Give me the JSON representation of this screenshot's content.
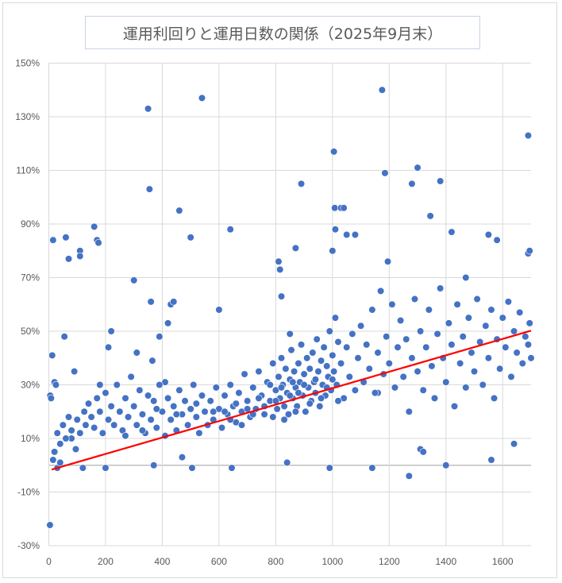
{
  "chart_data": {
    "type": "scatter",
    "title": "運用利回りと運用日数の関係（2025年9月末）",
    "xlabel": "",
    "ylabel": "",
    "xlim": [
      0,
      1700
    ],
    "ylim": [
      -30,
      150
    ],
    "x_ticks": [
      0,
      200,
      400,
      600,
      800,
      1000,
      1200,
      1400,
      1600
    ],
    "x_tick_labels": [
      "0",
      "200",
      "400",
      "600",
      "800",
      "1000",
      "1200",
      "1400",
      "1600"
    ],
    "y_ticks": [
      150,
      130,
      110,
      90,
      70,
      50,
      30,
      10,
      -10,
      -30
    ],
    "y_tick_labels": [
      "150%",
      "130%",
      "110%",
      "90%",
      "70%",
      "50%",
      "30%",
      "10%",
      "-10%",
      "-30%"
    ],
    "grid": true,
    "legend": "none",
    "colors": {
      "points": "#4472c4",
      "trendline": "#ff0000",
      "grid": "#d9d9d9",
      "zero_line": "#bfbfbf"
    },
    "trendline": {
      "type": "linear",
      "x": [
        10,
        1700
      ],
      "y": [
        -1.6,
        50.2
      ]
    },
    "points": [
      [
        4,
        -22.3
      ],
      [
        5,
        26
      ],
      [
        8,
        25
      ],
      [
        12,
        41
      ],
      [
        15,
        84
      ],
      [
        15,
        2
      ],
      [
        20,
        31
      ],
      [
        25,
        30
      ],
      [
        30,
        -1
      ],
      [
        40,
        1
      ],
      [
        55,
        48
      ],
      [
        60,
        85
      ],
      [
        70,
        77
      ],
      [
        80,
        10
      ],
      [
        90,
        35
      ],
      [
        110,
        80
      ],
      [
        110,
        78
      ],
      [
        120,
        -1
      ],
      [
        160,
        89
      ],
      [
        170,
        84
      ],
      [
        175,
        83
      ],
      [
        180,
        30
      ],
      [
        200,
        -1
      ],
      [
        210,
        44
      ],
      [
        220,
        50
      ],
      [
        300,
        69
      ],
      [
        310,
        42
      ],
      [
        350,
        133
      ],
      [
        355,
        103
      ],
      [
        360,
        61
      ],
      [
        365,
        39
      ],
      [
        370,
        0
      ],
      [
        390,
        48
      ],
      [
        410,
        31
      ],
      [
        420,
        53
      ],
      [
        430,
        60
      ],
      [
        440,
        61
      ],
      [
        460,
        95
      ],
      [
        470,
        3
      ],
      [
        500,
        85
      ],
      [
        505,
        -1
      ],
      [
        540,
        137
      ],
      [
        600,
        58
      ],
      [
        640,
        88
      ],
      [
        645,
        -1
      ],
      [
        810,
        76
      ],
      [
        815,
        73
      ],
      [
        820,
        63
      ],
      [
        840,
        1
      ],
      [
        850,
        49
      ],
      [
        870,
        81
      ],
      [
        890,
        105
      ],
      [
        990,
        -1
      ],
      [
        1000,
        80
      ],
      [
        1005,
        117
      ],
      [
        1008,
        96
      ],
      [
        1010,
        88
      ],
      [
        1030,
        96
      ],
      [
        1040,
        96
      ],
      [
        1050,
        86
      ],
      [
        1080,
        86
      ],
      [
        1140,
        -1
      ],
      [
        1160,
        27
      ],
      [
        1175,
        140
      ],
      [
        1185,
        109
      ],
      [
        1195,
        76
      ],
      [
        1270,
        -4
      ],
      [
        1280,
        105
      ],
      [
        1300,
        111
      ],
      [
        1310,
        6
      ],
      [
        1320,
        5
      ],
      [
        1345,
        93
      ],
      [
        1380,
        106
      ],
      [
        1400,
        0
      ],
      [
        1420,
        87
      ],
      [
        1470,
        70
      ],
      [
        1550,
        86
      ],
      [
        1560,
        2
      ],
      [
        1580,
        84
      ],
      [
        1640,
        8
      ],
      [
        1690,
        123
      ],
      [
        1690,
        79
      ],
      [
        1695,
        80
      ],
      [
        20,
        5
      ],
      [
        30,
        12
      ],
      [
        40,
        8
      ],
      [
        50,
        15
      ],
      [
        60,
        10
      ],
      [
        70,
        18
      ],
      [
        80,
        13
      ],
      [
        95,
        6
      ],
      [
        100,
        17
      ],
      [
        110,
        12
      ],
      [
        125,
        20
      ],
      [
        130,
        15
      ],
      [
        140,
        23
      ],
      [
        150,
        18
      ],
      [
        160,
        14
      ],
      [
        170,
        25
      ],
      [
        180,
        20
      ],
      [
        190,
        12
      ],
      [
        200,
        27
      ],
      [
        210,
        17
      ],
      [
        220,
        22
      ],
      [
        230,
        15
      ],
      [
        240,
        30
      ],
      [
        250,
        20
      ],
      [
        260,
        13
      ],
      [
        270,
        25
      ],
      [
        280,
        18
      ],
      [
        290,
        33
      ],
      [
        300,
        22
      ],
      [
        310,
        15
      ],
      [
        320,
        28
      ],
      [
        330,
        19
      ],
      [
        340,
        12
      ],
      [
        350,
        26
      ],
      [
        360,
        17
      ],
      [
        370,
        24
      ],
      [
        380,
        14
      ],
      [
        390,
        30
      ],
      [
        400,
        20
      ],
      [
        410,
        11
      ],
      [
        420,
        25
      ],
      [
        430,
        17
      ],
      [
        440,
        22
      ],
      [
        450,
        13
      ],
      [
        460,
        28
      ],
      [
        470,
        19
      ],
      [
        480,
        24
      ],
      [
        490,
        15
      ],
      [
        500,
        21
      ],
      [
        510,
        30
      ],
      [
        520,
        18
      ],
      [
        530,
        12
      ],
      [
        540,
        26
      ],
      [
        550,
        20
      ],
      [
        560,
        15
      ],
      [
        570,
        24
      ],
      [
        580,
        17
      ],
      [
        590,
        29
      ],
      [
        600,
        21
      ],
      [
        610,
        14
      ],
      [
        620,
        26
      ],
      [
        630,
        19
      ],
      [
        640,
        30
      ],
      [
        650,
        22
      ],
      [
        660,
        16
      ],
      [
        670,
        27
      ],
      [
        680,
        20
      ],
      [
        690,
        34
      ],
      [
        700,
        24
      ],
      [
        710,
        18
      ],
      [
        720,
        29
      ],
      [
        730,
        21
      ],
      [
        740,
        35
      ],
      [
        750,
        26
      ],
      [
        760,
        19
      ],
      [
        770,
        31
      ],
      [
        780,
        24
      ],
      [
        790,
        38
      ],
      [
        800,
        28
      ],
      [
        805,
        21
      ],
      [
        810,
        33
      ],
      [
        815,
        25
      ],
      [
        820,
        40
      ],
      [
        825,
        30
      ],
      [
        830,
        22
      ],
      [
        835,
        36
      ],
      [
        840,
        27
      ],
      [
        845,
        19
      ],
      [
        850,
        32
      ],
      [
        855,
        43
      ],
      [
        860,
        25
      ],
      [
        865,
        35
      ],
      [
        870,
        29
      ],
      [
        875,
        22
      ],
      [
        880,
        38
      ],
      [
        885,
        31
      ],
      [
        890,
        45
      ],
      [
        895,
        26
      ],
      [
        900,
        34
      ],
      [
        905,
        20
      ],
      [
        910,
        40
      ],
      [
        915,
        29
      ],
      [
        920,
        36
      ],
      [
        925,
        24
      ],
      [
        930,
        42
      ],
      [
        935,
        31
      ],
      [
        940,
        27
      ],
      [
        945,
        47
      ],
      [
        950,
        35
      ],
      [
        955,
        22
      ],
      [
        960,
        39
      ],
      [
        965,
        30
      ],
      [
        970,
        44
      ],
      [
        975,
        26
      ],
      [
        980,
        37
      ],
      [
        985,
        33
      ],
      [
        990,
        50
      ],
      [
        995,
        28
      ],
      [
        1000,
        41
      ],
      [
        1005,
        35
      ],
      [
        1010,
        55
      ],
      [
        1015,
        30
      ],
      [
        1020,
        46
      ],
      [
        1030,
        38
      ],
      [
        1040,
        25
      ],
      [
        1050,
        44
      ],
      [
        1060,
        33
      ],
      [
        1070,
        49
      ],
      [
        1080,
        28
      ],
      [
        1090,
        40
      ],
      [
        1100,
        52
      ],
      [
        1110,
        31
      ],
      [
        1120,
        45
      ],
      [
        1130,
        36
      ],
      [
        1140,
        58
      ],
      [
        1150,
        27
      ],
      [
        1160,
        42
      ],
      [
        1170,
        65
      ],
      [
        1180,
        34
      ],
      [
        1190,
        48
      ],
      [
        1200,
        38
      ],
      [
        1210,
        60
      ],
      [
        1220,
        29
      ],
      [
        1230,
        44
      ],
      [
        1240,
        54
      ],
      [
        1250,
        33
      ],
      [
        1260,
        47
      ],
      [
        1270,
        20
      ],
      [
        1280,
        40
      ],
      [
        1290,
        62
      ],
      [
        1300,
        35
      ],
      [
        1310,
        50
      ],
      [
        1320,
        28
      ],
      [
        1330,
        44
      ],
      [
        1340,
        58
      ],
      [
        1350,
        37
      ],
      [
        1360,
        25
      ],
      [
        1370,
        49
      ],
      [
        1380,
        66
      ],
      [
        1390,
        40
      ],
      [
        1400,
        31
      ],
      [
        1410,
        53
      ],
      [
        1420,
        45
      ],
      [
        1430,
        22
      ],
      [
        1440,
        60
      ],
      [
        1450,
        38
      ],
      [
        1460,
        48
      ],
      [
        1470,
        29
      ],
      [
        1480,
        55
      ],
      [
        1490,
        42
      ],
      [
        1500,
        35
      ],
      [
        1510,
        62
      ],
      [
        1520,
        46
      ],
      [
        1530,
        30
      ],
      [
        1540,
        52
      ],
      [
        1550,
        40
      ],
      [
        1560,
        58
      ],
      [
        1570,
        25
      ],
      [
        1580,
        47
      ],
      [
        1590,
        36
      ],
      [
        1600,
        55
      ],
      [
        1610,
        44
      ],
      [
        1620,
        61
      ],
      [
        1630,
        33
      ],
      [
        1640,
        50
      ],
      [
        1650,
        42
      ],
      [
        1660,
        57
      ],
      [
        1670,
        38
      ],
      [
        1680,
        48
      ],
      [
        1690,
        45
      ],
      [
        1695,
        53
      ],
      [
        1700,
        40
      ],
      [
        620,
        20
      ],
      [
        640,
        17
      ],
      [
        660,
        23
      ],
      [
        680,
        15
      ],
      [
        700,
        21
      ],
      [
        720,
        19
      ],
      [
        740,
        25
      ],
      [
        760,
        22
      ],
      [
        780,
        30
      ],
      [
        790,
        18
      ],
      [
        800,
        24
      ],
      [
        820,
        29
      ],
      [
        830,
        17
      ],
      [
        850,
        26
      ],
      [
        860,
        31
      ],
      [
        870,
        20
      ],
      [
        880,
        27
      ],
      [
        900,
        30
      ],
      [
        920,
        23
      ],
      [
        940,
        32
      ],
      [
        960,
        25
      ],
      [
        980,
        29
      ],
      [
        1000,
        32
      ],
      [
        1020,
        24
      ],
      [
        450,
        19
      ],
      [
        520,
        23
      ],
      [
        580,
        20
      ],
      [
        380,
        21
      ],
      [
        330,
        13
      ],
      [
        270,
        11
      ]
    ]
  }
}
